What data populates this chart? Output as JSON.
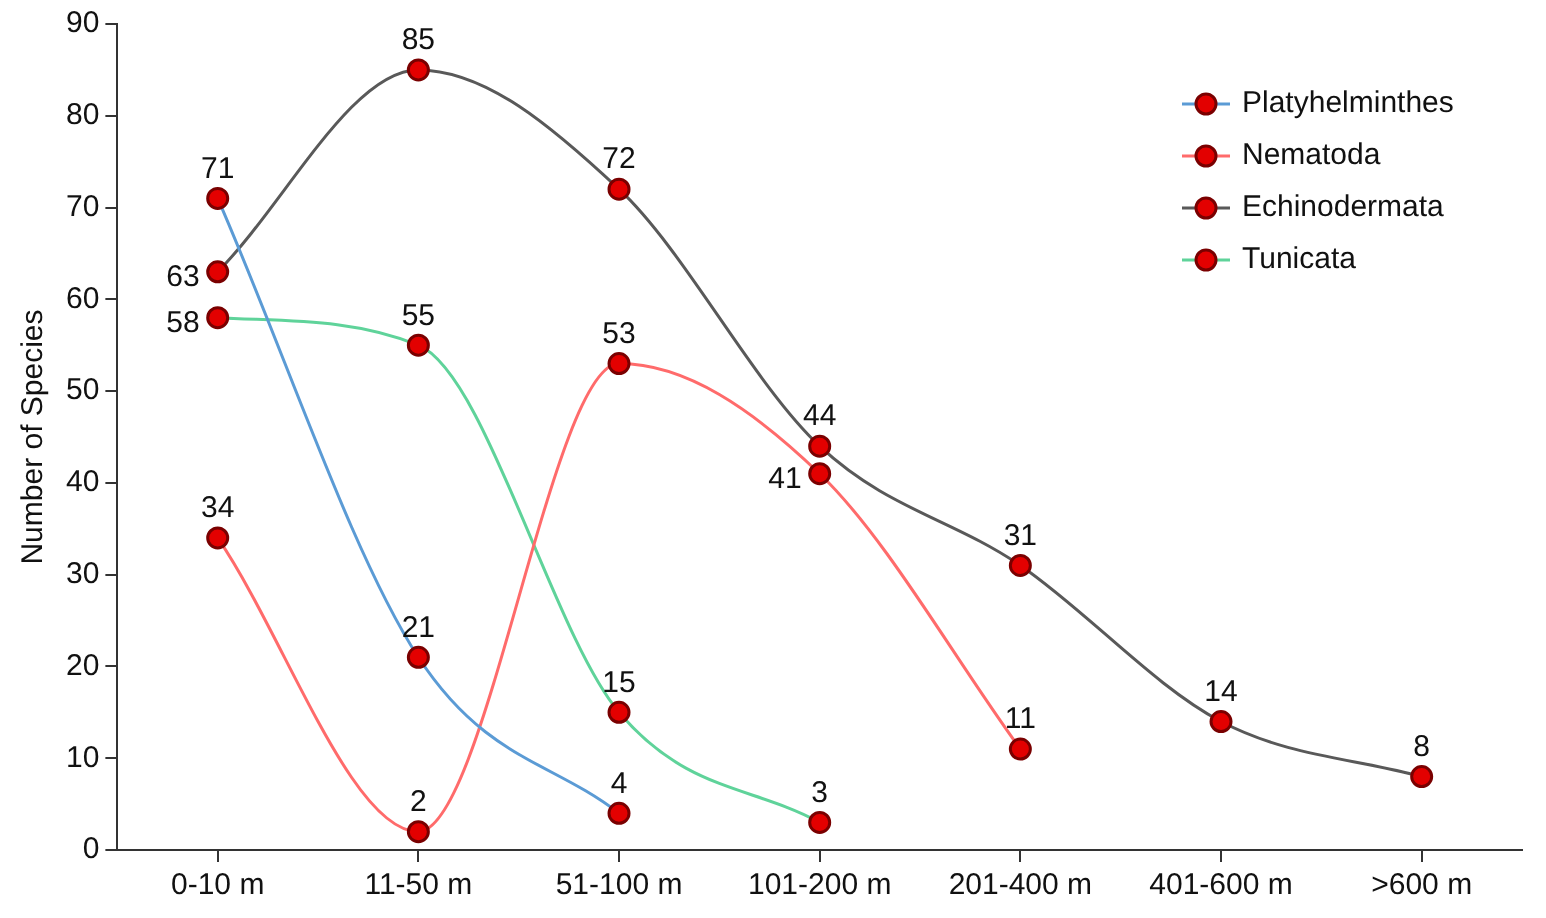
{
  "chart_data": {
    "type": "line",
    "ylabel": "Number of Species",
    "categories": [
      "0-10 m",
      "11-50 m",
      "51-100 m",
      "101-200 m",
      "201-400 m",
      "401-600 m",
      ">600 m"
    ],
    "series": [
      {
        "name": "Platyhelminthes",
        "color": "#5b9bd5",
        "values": [
          71,
          21,
          4,
          null,
          null,
          null,
          null
        ]
      },
      {
        "name": "Nematoda",
        "color": "#ff6b6b",
        "values": [
          34,
          2,
          53,
          41,
          11,
          null,
          null
        ]
      },
      {
        "name": "Echinodermata",
        "color": "#595959",
        "values": [
          63,
          85,
          72,
          44,
          31,
          14,
          8
        ]
      },
      {
        "name": "Tunicata",
        "color": "#5fd39a",
        "values": [
          58,
          55,
          15,
          3,
          null,
          null,
          null
        ]
      }
    ],
    "ylim": [
      0,
      90
    ],
    "yticks": [
      0,
      10,
      20,
      30,
      40,
      50,
      60,
      70,
      80,
      90
    ],
    "grid": false,
    "legend": "top right",
    "marker": "circle",
    "data_labels": true
  }
}
